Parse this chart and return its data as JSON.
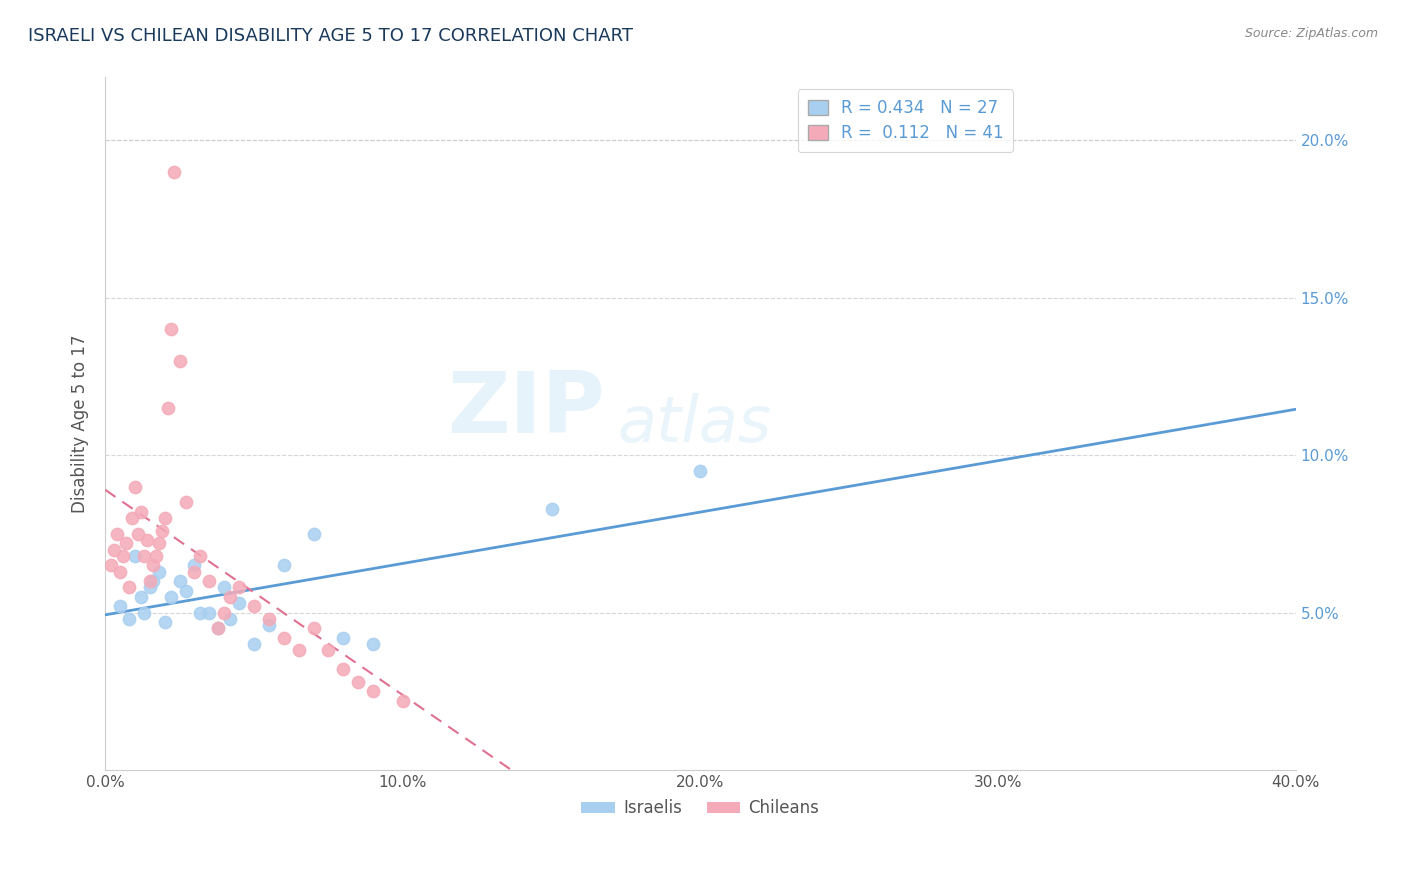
{
  "title": "ISRAELI VS CHILEAN DISABILITY AGE 5 TO 17 CORRELATION CHART",
  "source": "Source: ZipAtlas.com",
  "ylabel": "Disability Age 5 to 17",
  "xlim": [
    0.0,
    0.4
  ],
  "ylim": [
    0.0,
    0.22
  ],
  "xticks": [
    0.0,
    0.1,
    0.2,
    0.3,
    0.4
  ],
  "xtick_labels": [
    "0.0%",
    "10.0%",
    "20.0%",
    "30.0%",
    "40.0%"
  ],
  "yticks": [
    0.05,
    0.1,
    0.15,
    0.2
  ],
  "ytick_labels": [
    "5.0%",
    "10.0%",
    "15.0%",
    "20.0%"
  ],
  "israeli_r": 0.434,
  "israeli_n": 27,
  "chilean_r": 0.112,
  "chilean_n": 41,
  "israeli_color": "#a8cff0",
  "chilean_color": "#f4aab8",
  "israeli_line_color": "#5b9bd5",
  "chilean_line_color": "#e07090",
  "grid_color": "#cccccc",
  "title_color": "#1a3a5c",
  "watermark_zip": "ZIP",
  "watermark_atlas": "atlas",
  "israelis_x": [
    0.005,
    0.008,
    0.01,
    0.012,
    0.013,
    0.015,
    0.016,
    0.018,
    0.02,
    0.022,
    0.025,
    0.027,
    0.03,
    0.032,
    0.035,
    0.038,
    0.04,
    0.042,
    0.045,
    0.05,
    0.055,
    0.06,
    0.07,
    0.08,
    0.09,
    0.15,
    0.2
  ],
  "israelis_y": [
    0.052,
    0.048,
    0.068,
    0.055,
    0.05,
    0.058,
    0.06,
    0.063,
    0.047,
    0.055,
    0.06,
    0.057,
    0.065,
    0.05,
    0.05,
    0.045,
    0.058,
    0.048,
    0.053,
    0.04,
    0.046,
    0.065,
    0.075,
    0.042,
    0.04,
    0.083,
    0.095
  ],
  "chileans_x": [
    0.002,
    0.003,
    0.004,
    0.005,
    0.006,
    0.007,
    0.008,
    0.009,
    0.01,
    0.011,
    0.012,
    0.013,
    0.014,
    0.015,
    0.016,
    0.017,
    0.018,
    0.019,
    0.02,
    0.021,
    0.022,
    0.023,
    0.025,
    0.027,
    0.03,
    0.032,
    0.035,
    0.038,
    0.04,
    0.042,
    0.045,
    0.05,
    0.055,
    0.06,
    0.065,
    0.07,
    0.075,
    0.08,
    0.085,
    0.09,
    0.1
  ],
  "chileans_y": [
    0.065,
    0.07,
    0.075,
    0.063,
    0.068,
    0.072,
    0.058,
    0.08,
    0.09,
    0.075,
    0.082,
    0.068,
    0.073,
    0.06,
    0.065,
    0.068,
    0.072,
    0.076,
    0.08,
    0.115,
    0.14,
    0.19,
    0.13,
    0.085,
    0.063,
    0.068,
    0.06,
    0.045,
    0.05,
    0.055,
    0.058,
    0.052,
    0.048,
    0.042,
    0.038,
    0.045,
    0.038,
    0.032,
    0.028,
    0.025,
    0.022
  ]
}
